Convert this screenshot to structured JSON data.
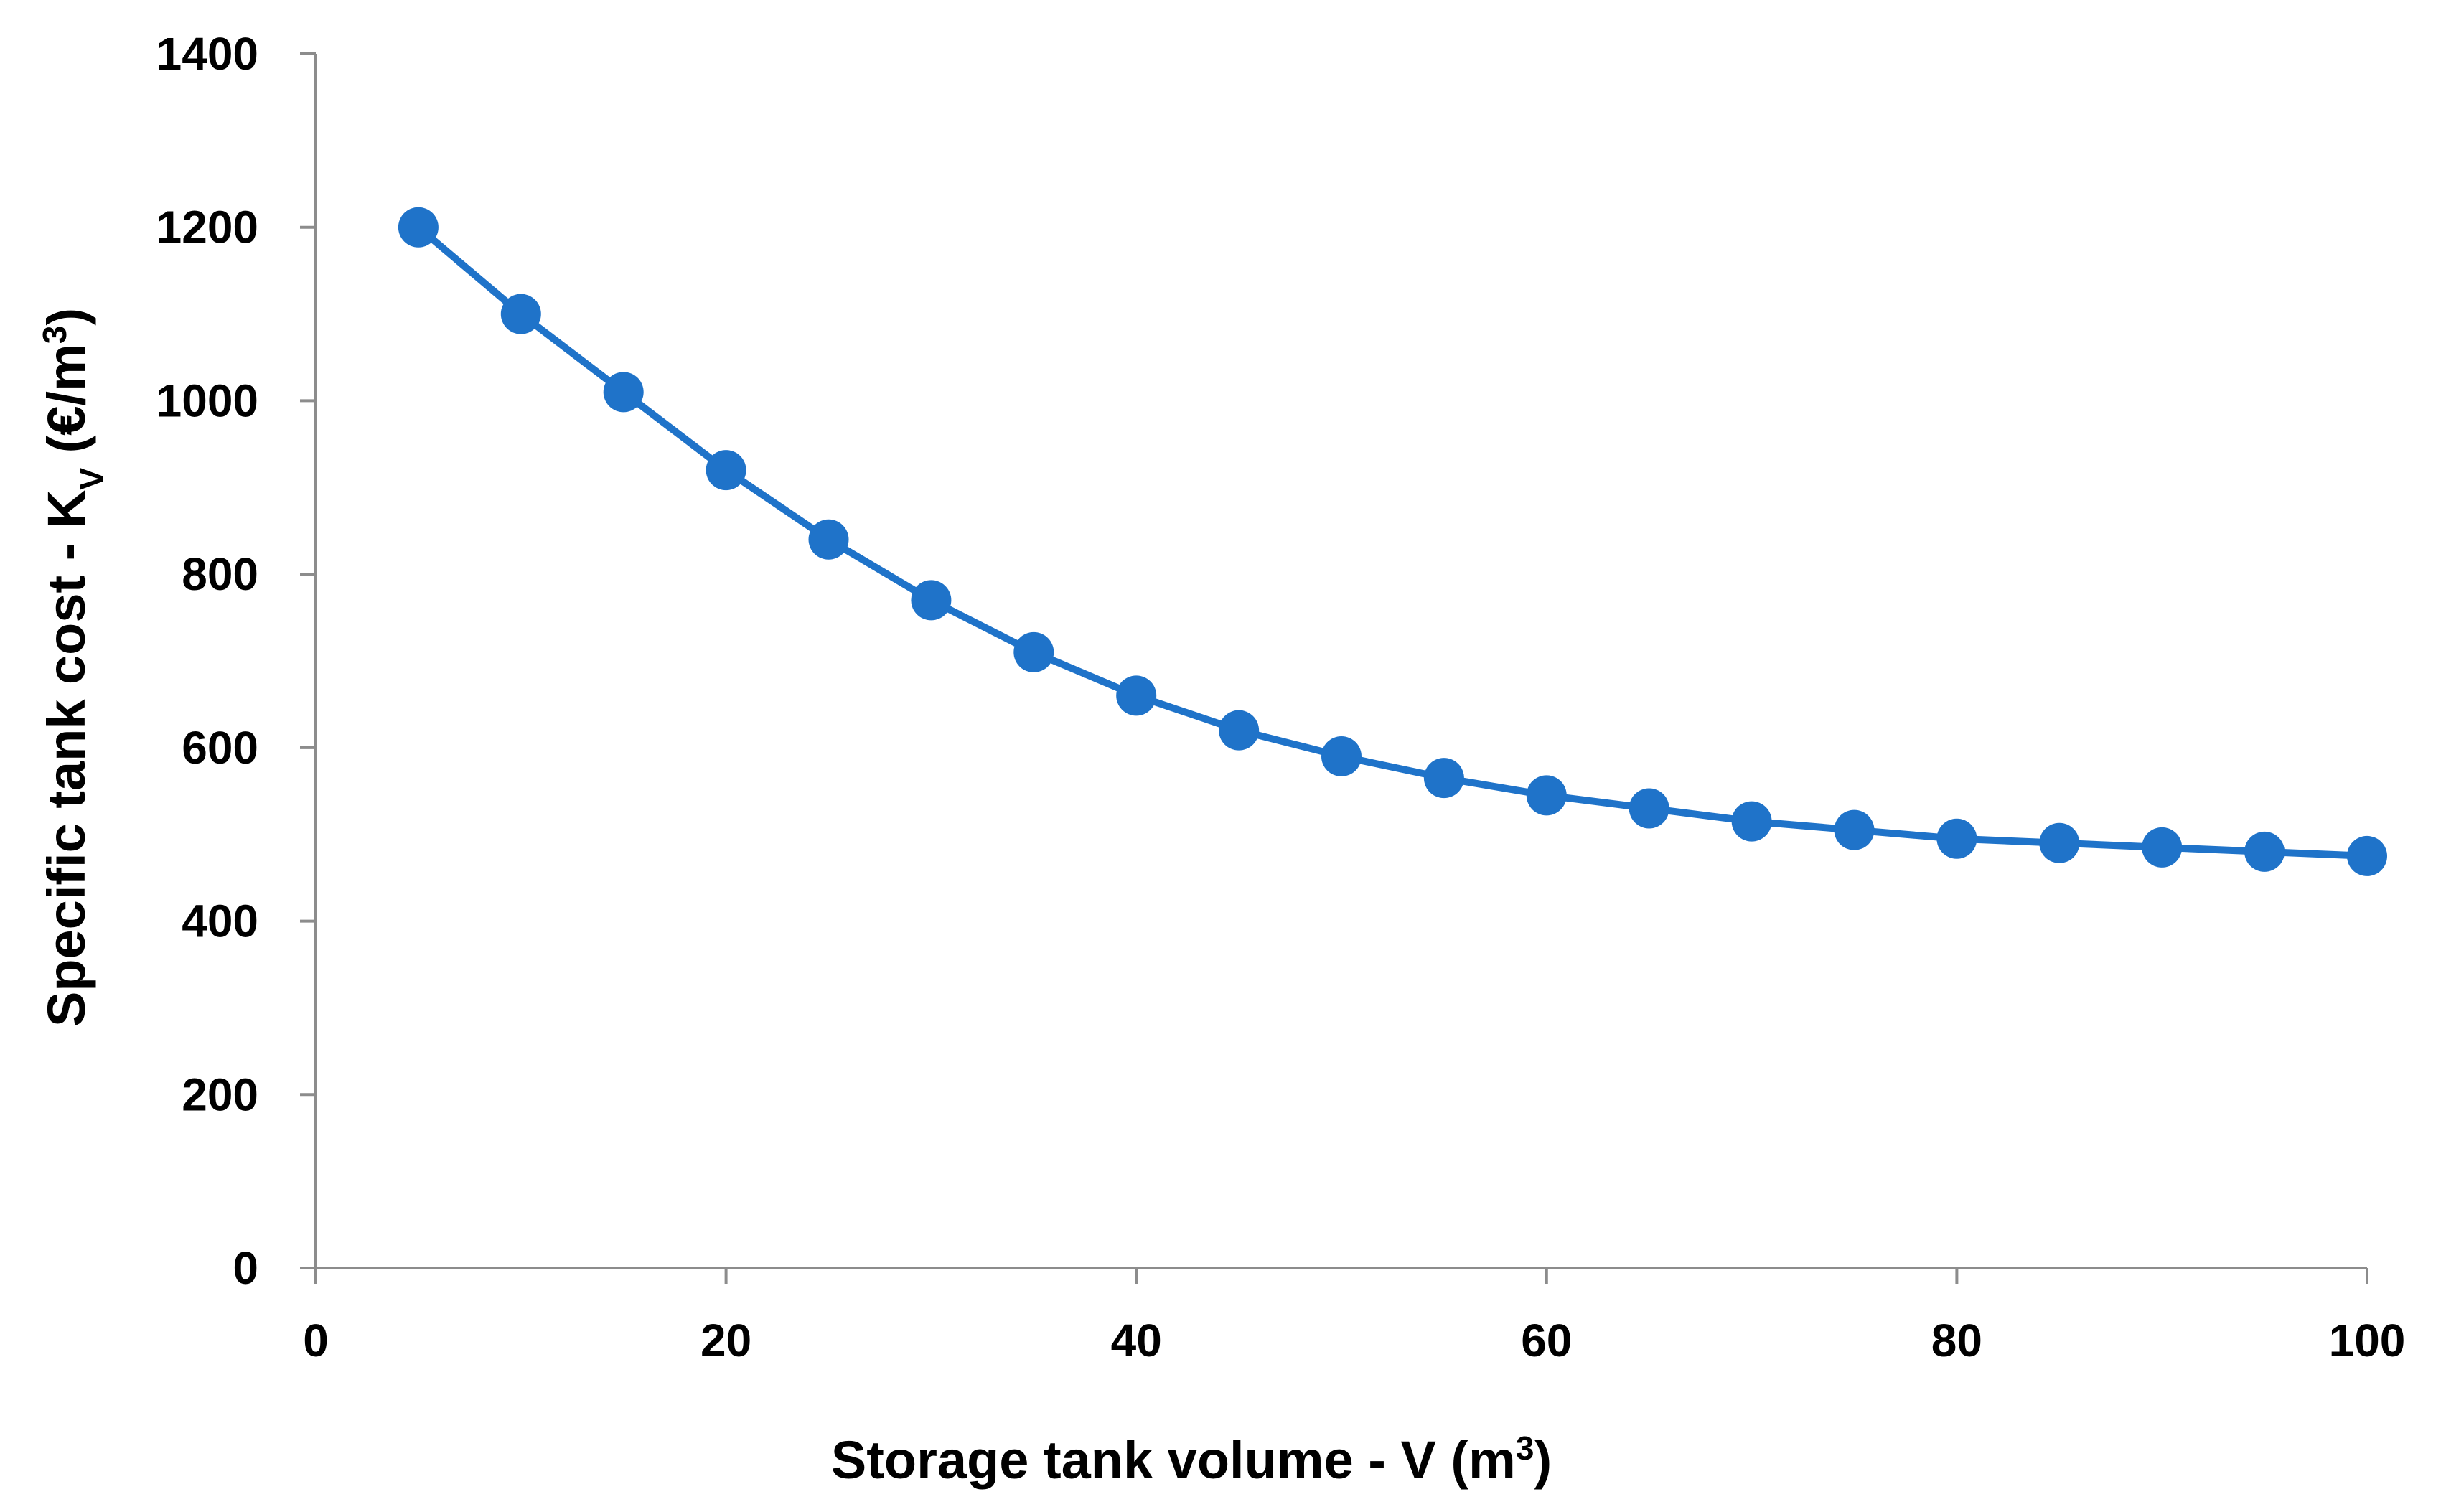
{
  "chart_data": {
    "type": "line",
    "title": "",
    "xlabel": {
      "main": "Storage tank volume - V (m",
      "sup": "3",
      "end": ")"
    },
    "ylabel": {
      "main": "Specific tank cost - K",
      "sub": "V",
      "mid": " (€/m",
      "sup": "3",
      "end": ")"
    },
    "xlim": [
      0,
      100
    ],
    "ylim": [
      0,
      1400
    ],
    "xticks": [
      0,
      20,
      40,
      60,
      80,
      100
    ],
    "yticks": [
      0,
      200,
      400,
      600,
      800,
      1000,
      1200,
      1400
    ],
    "xtick_labels": [
      "0",
      "20",
      "40",
      "60",
      "80",
      "100"
    ],
    "ytick_labels": [
      "0",
      "200",
      "400",
      "600",
      "800",
      "1000",
      "1200",
      "1400"
    ],
    "grid": false,
    "legend": "none",
    "series": [
      {
        "name": "Specific tank cost",
        "color": "#1f73c9",
        "marker": "circle",
        "x": [
          5,
          10,
          15,
          20,
          25,
          30,
          35,
          40,
          45,
          50,
          55,
          60,
          65,
          70,
          75,
          80,
          85,
          90,
          95,
          100
        ],
        "y": [
          1200,
          1100,
          1010,
          920,
          840,
          770,
          710,
          660,
          620,
          590,
          565,
          545,
          530,
          515,
          505,
          495,
          490,
          485,
          480,
          475
        ]
      }
    ],
    "axis_color": "#8c8c8c"
  }
}
